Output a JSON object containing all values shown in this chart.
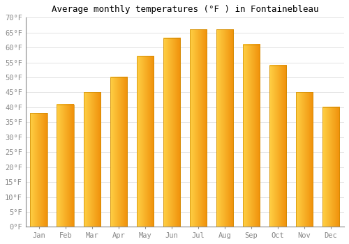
{
  "months": [
    "Jan",
    "Feb",
    "Mar",
    "Apr",
    "May",
    "Jun",
    "Jul",
    "Aug",
    "Sep",
    "Oct",
    "Nov",
    "Dec"
  ],
  "values": [
    38,
    41,
    45,
    50,
    57,
    63,
    66,
    66,
    61,
    54,
    45,
    40
  ],
  "bar_color_left": "#FFD045",
  "bar_color_right": "#F0900A",
  "title": "Average monthly temperatures (°F ) in Fontainebleau",
  "ylim": [
    0,
    70
  ],
  "yticks": [
    0,
    5,
    10,
    15,
    20,
    25,
    30,
    35,
    40,
    45,
    50,
    55,
    60,
    65,
    70
  ],
  "ytick_labels": [
    "0°F",
    "5°F",
    "10°F",
    "15°F",
    "20°F",
    "25°F",
    "30°F",
    "35°F",
    "40°F",
    "45°F",
    "50°F",
    "55°F",
    "60°F",
    "65°F",
    "70°F"
  ],
  "background_color": "#FFFFFF",
  "grid_color": "#DDDDDD",
  "title_fontsize": 9,
  "tick_fontsize": 7.5,
  "bar_width": 0.65
}
